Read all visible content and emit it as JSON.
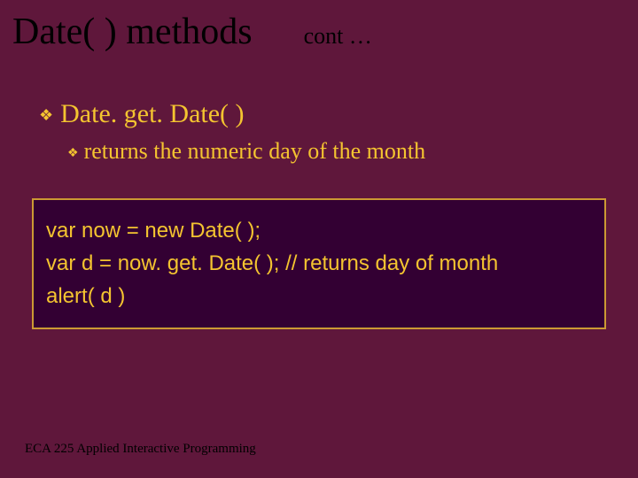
{
  "title": "Date( ) methods",
  "subtitle": "cont …",
  "bullets": {
    "level1": {
      "text": "Date. get. Date( )"
    },
    "level2": {
      "text": "returns the numeric day of the month"
    }
  },
  "code": {
    "line1": "var now = new Date( );",
    "line2": "var d = now. get. Date( );  // returns day of month",
    "line3": "alert( d )"
  },
  "footer": "ECA 225   Applied Interactive Programming",
  "colors": {
    "slide_bg": "#5f173b",
    "title_color": "#000000",
    "bullet_color": "#f4c430",
    "codebox_bg": "#330033",
    "codebox_border": "#cc9933",
    "code_text": "#f4c430",
    "footer_color": "#000000"
  },
  "bullet_marker": "❖"
}
